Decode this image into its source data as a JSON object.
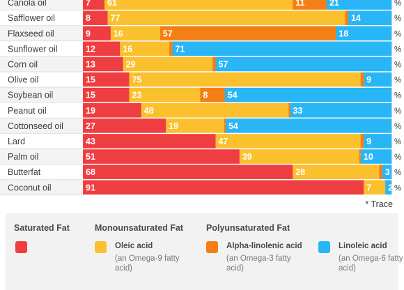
{
  "chart_data": {
    "type": "bar",
    "stacked": true,
    "orientation": "horizontal",
    "unit_suffix": "%",
    "categories": [
      "Canola oil",
      "Safflower oil",
      "Flaxseed oil",
      "Sunflower oil",
      "Corn oil",
      "Olive oil",
      "Soybean oil",
      "Peanut oil",
      "Cottonseed oil",
      "Lard",
      "Palm oil",
      "Butterfat",
      "Coconut oil"
    ],
    "series": [
      {
        "key": "saturated",
        "color": "#ef3e42",
        "values": [
          7,
          8,
          9,
          12,
          13,
          15,
          15,
          19,
          27,
          43,
          51,
          68,
          91
        ],
        "labels": [
          "7",
          "8",
          "9",
          "12",
          "13",
          "15",
          "15",
          "19",
          "27",
          "43",
          "51",
          "68",
          "91"
        ]
      },
      {
        "key": "oleic",
        "color": "#fbc02d",
        "values": [
          61,
          77,
          16,
          16,
          29,
          75,
          23,
          48,
          19,
          47,
          39,
          28,
          7
        ],
        "labels": [
          "61",
          "77",
          "16",
          "16",
          "29",
          "75",
          "23",
          "48",
          "19",
          "47",
          "39",
          "28",
          "7"
        ]
      },
      {
        "key": "alpha_linolenic",
        "color": "#f57f17",
        "values": [
          11,
          1,
          57,
          1,
          1,
          1,
          8,
          0.5,
          0.5,
          1,
          0.5,
          1,
          0
        ],
        "labels": [
          "11",
          "1",
          "57",
          "1",
          "1",
          "1",
          "8",
          "*",
          "*",
          "1",
          "*",
          "1",
          ""
        ]
      },
      {
        "key": "linoleic",
        "color": "#29b6f6",
        "values": [
          21,
          14,
          18,
          71,
          57,
          9,
          54,
          33,
          54,
          9,
          10,
          3,
          2
        ],
        "labels": [
          "21",
          "14",
          "18",
          "71",
          "57",
          "9",
          "54",
          "33",
          "54",
          "9",
          "10",
          "3",
          "2"
        ]
      }
    ],
    "xlim": [
      0,
      100
    ],
    "footnote": "* Trace"
  },
  "legend": {
    "saturated_header": "Saturated Fat",
    "mono_header": "Monounsaturated Fat",
    "poly_header": "Polyunsaturated Fat",
    "oleic_label": "Oleic acid",
    "oleic_note": "(an Omega-9 fatty acid)",
    "ala_label": "Alpha-linolenic acid",
    "ala_note": "(an Omega-3 fatty acid)",
    "linoleic_label": "Linoleic acid",
    "linoleic_note": "(an Omega-6 fatty acid)"
  }
}
